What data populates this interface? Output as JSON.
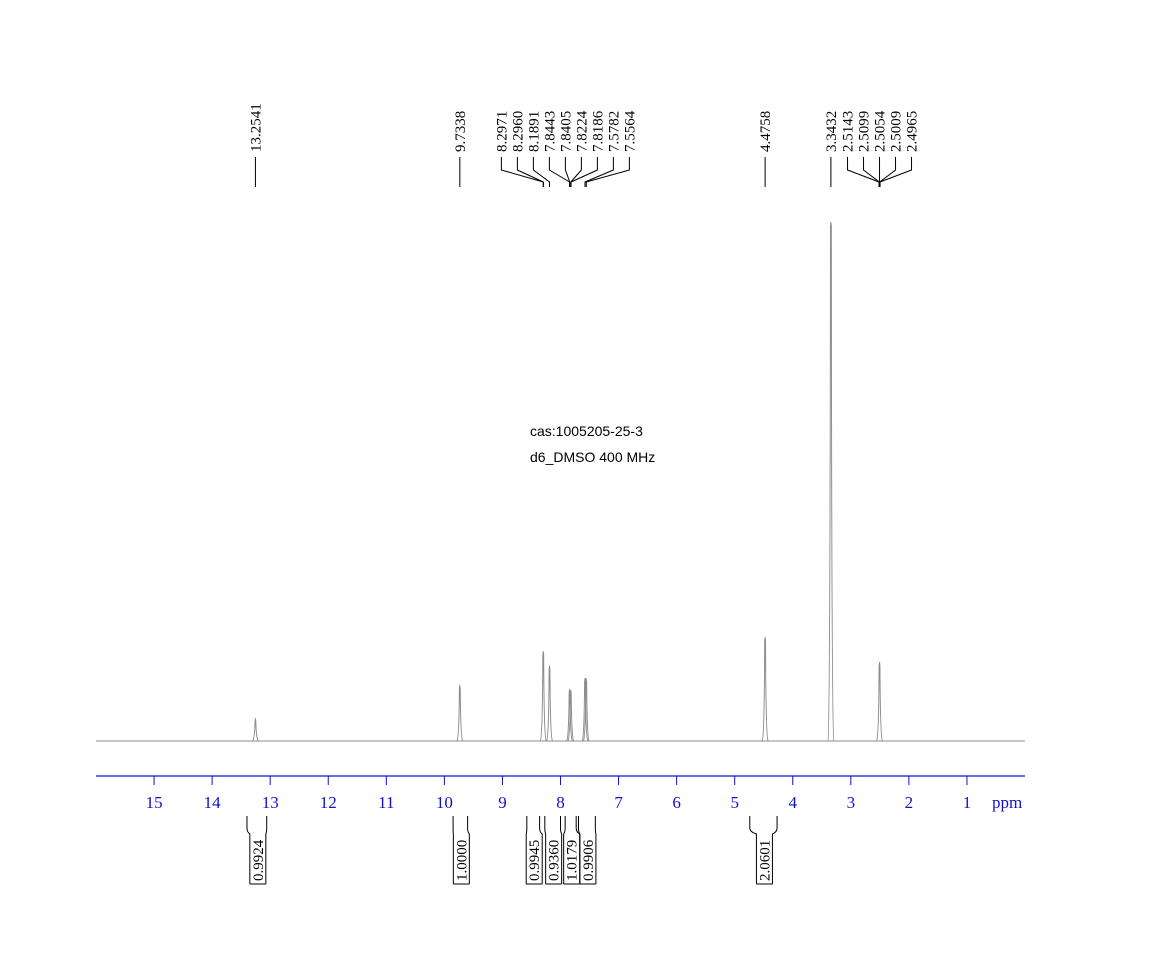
{
  "chart_data": {
    "type": "nmr",
    "annotations": [
      "cas:1005205-25-3",
      "d6_DMSO  400 MHz"
    ],
    "xlabel": "ppm",
    "xlim": [
      16,
      0
    ],
    "xticks": [
      15,
      14,
      13,
      12,
      11,
      10,
      9,
      8,
      7,
      6,
      5,
      4,
      3,
      2,
      1
    ],
    "ylim": [
      0,
      100
    ],
    "color": "#8c8c8c",
    "axis_color": "#1010d0",
    "peak_labels": [
      13.2541,
      9.7338,
      8.2971,
      {
        "value": 8.296,
        "label": "8.2960"
      },
      8.1891,
      7.8443,
      7.8405,
      7.8224,
      7.8186,
      7.5782,
      7.5564,
      4.4758,
      3.3432,
      2.5143,
      2.5099,
      2.5054,
      2.5009,
      2.4965
    ],
    "signals": {
      "x": [
        13.2541,
        9.7338,
        8.2971,
        8.1891,
        7.8443,
        7.8224,
        7.5782,
        7.5564,
        4.4758,
        3.3432,
        2.5054
      ],
      "values": [
        4.4,
        10.8,
        17.3,
        14.5,
        10.0,
        9.8,
        12.1,
        12.1,
        20.0,
        100,
        15.2
      ]
    },
    "integrals": [
      {
        "from": 13.4,
        "to": 13.06,
        "value": 0.9924
      },
      {
        "from": 9.85,
        "to": 9.6,
        "value": {
          "value": 1,
          "label": "1.0000"
        }
      },
      {
        "from": 8.58,
        "to": 8.36,
        "value": 0.9945
      },
      {
        "from": 8.27,
        "to": 8.0,
        "value": {
          "value": 0.936,
          "label": "0.9360"
        }
      },
      {
        "from": 7.92,
        "to": 7.73,
        "value": 1.0179
      },
      {
        "from": 7.69,
        "to": 7.4,
        "value": 0.9906
      },
      {
        "from": 4.74,
        "to": 4.27,
        "value": 2.0601
      }
    ]
  }
}
